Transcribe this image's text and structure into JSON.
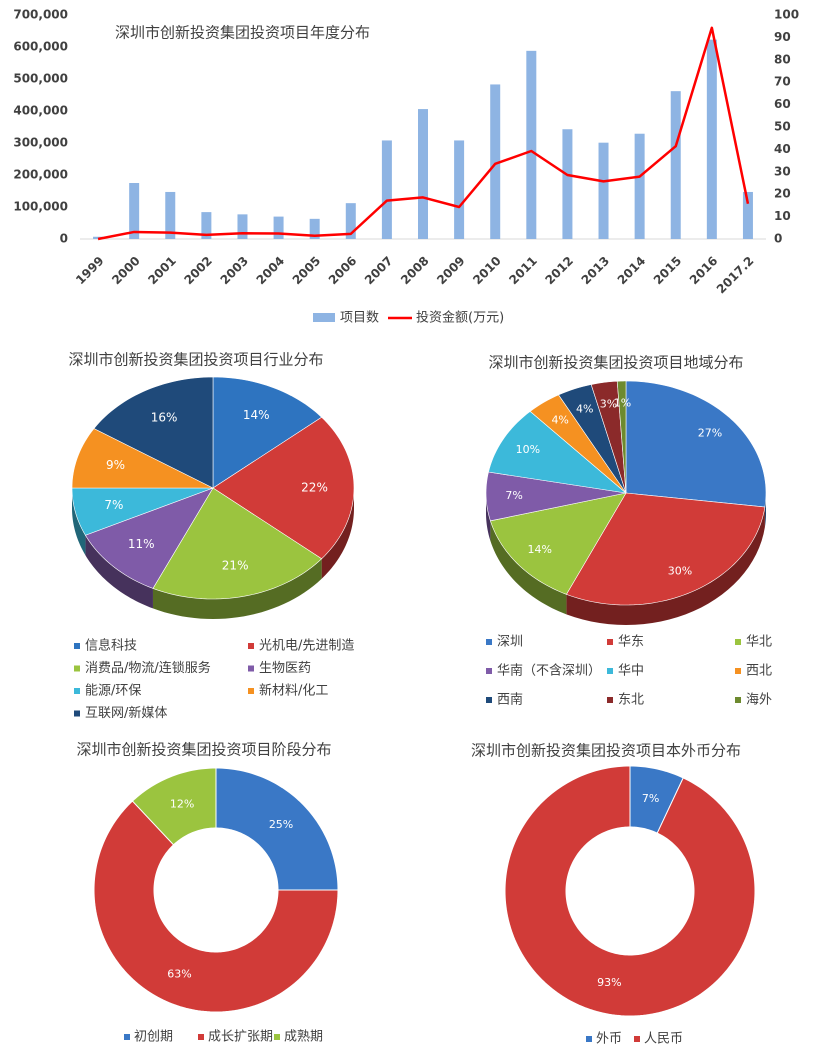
{
  "chart_data": [
    {
      "type": "bar+line",
      "title": "深圳市创新投资集团投资项目年度分布",
      "categories": [
        "1999",
        "2000",
        "2001",
        "2002",
        "2003",
        "2004",
        "2005",
        "2006",
        "2007",
        "2008",
        "2009",
        "2010",
        "2011",
        "2012",
        "2013",
        "2014",
        "2015",
        "2016",
        "2017.2"
      ],
      "series": [
        {
          "name": "项目数",
          "kind": "bar",
          "axis": "right",
          "color": "#8EB4E3",
          "values": [
            1,
            25,
            21,
            12,
            11,
            10,
            9,
            16,
            44,
            58,
            44,
            69,
            84,
            49,
            43,
            47,
            66,
            89,
            21
          ]
        },
        {
          "name": "投资金额(万元)",
          "kind": "line",
          "axis": "left",
          "color": "#FF0000",
          "values": [
            0,
            22000,
            20000,
            13000,
            18000,
            17000,
            10000,
            16000,
            120000,
            130000,
            100000,
            235000,
            275000,
            200000,
            180000,
            195000,
            290000,
            660000,
            110000
          ]
        }
      ],
      "y_left": {
        "min": 0,
        "max": 700000,
        "ticks": [
          "0",
          "100,000",
          "200,000",
          "300,000",
          "400,000",
          "500,000",
          "600,000",
          "700,000"
        ]
      },
      "y_right": {
        "min": 0,
        "max": 100,
        "ticks": [
          "0",
          "10",
          "20",
          "30",
          "40",
          "50",
          "60",
          "70",
          "80",
          "90",
          "100"
        ]
      },
      "legend_position": "bottom"
    },
    {
      "type": "pie",
      "title": "深圳市创新投资集团投资项目行业分布",
      "slices": [
        {
          "label": "信息科技",
          "value": 14,
          "display": "14%",
          "color": "#2E74C0"
        },
        {
          "label": "光机电/先进制造",
          "value": 22,
          "display": "22%",
          "color": "#D13B38"
        },
        {
          "label": "消费品/物流/连锁服务",
          "value": 21,
          "display": "21%",
          "color": "#9BC43F"
        },
        {
          "label": "生物医药",
          "value": 11,
          "display": "11%",
          "color": "#7F5BA8"
        },
        {
          "label": "能源/环保",
          "value": 7,
          "display": "7%",
          "color": "#3CB9DA"
        },
        {
          "label": "新材料/化工",
          "value": 9,
          "display": "9%",
          "color": "#F59121"
        },
        {
          "label": "互联网/新媒体",
          "value": 16,
          "display": "16%",
          "color": "#1F4A7A"
        }
      ],
      "legend_position": "bottom"
    },
    {
      "type": "pie",
      "title": "深圳市创新投资集团投资项目地域分布",
      "slices": [
        {
          "label": "深圳",
          "value": 27,
          "display": "27%",
          "color": "#3A78C6"
        },
        {
          "label": "华东",
          "value": 30,
          "display": "30%",
          "color": "#D13B38"
        },
        {
          "label": "华北",
          "value": 14,
          "display": "14%",
          "color": "#9BC43F"
        },
        {
          "label": "华南（不含深圳）",
          "value": 7,
          "display": "7%",
          "color": "#7F5BA8"
        },
        {
          "label": "华中",
          "value": 10,
          "display": "10%",
          "color": "#3CB9DA"
        },
        {
          "label": "西北",
          "value": 4,
          "display": "4%",
          "color": "#F59121"
        },
        {
          "label": "西南",
          "value": 4,
          "display": "4%",
          "color": "#1F4A7A"
        },
        {
          "label": "东北",
          "value": 3,
          "display": "3%",
          "color": "#8B2A2A"
        },
        {
          "label": "海外",
          "value": 1,
          "display": "1%",
          "color": "#6D8A2E"
        }
      ],
      "legend_position": "bottom"
    },
    {
      "type": "doughnut",
      "title": "深圳市创新投资集团投资项目阶段分布",
      "slices": [
        {
          "label": "初创期",
          "value": 25,
          "display": "25%",
          "color": "#3A78C6"
        },
        {
          "label": "成长扩张期",
          "value": 63,
          "display": "63%",
          "color": "#D13B38"
        },
        {
          "label": "成熟期",
          "value": 12,
          "display": "12%",
          "color": "#9BC43F"
        }
      ],
      "legend_position": "bottom"
    },
    {
      "type": "doughnut",
      "title": "深圳市创新投资集团投资项目本外币分布",
      "slices": [
        {
          "label": "外币",
          "value": 7,
          "display": "7%",
          "color": "#3A78C6"
        },
        {
          "label": "人民币",
          "value": 93,
          "display": "93%",
          "color": "#D13B38"
        }
      ],
      "legend_position": "bottom"
    }
  ]
}
